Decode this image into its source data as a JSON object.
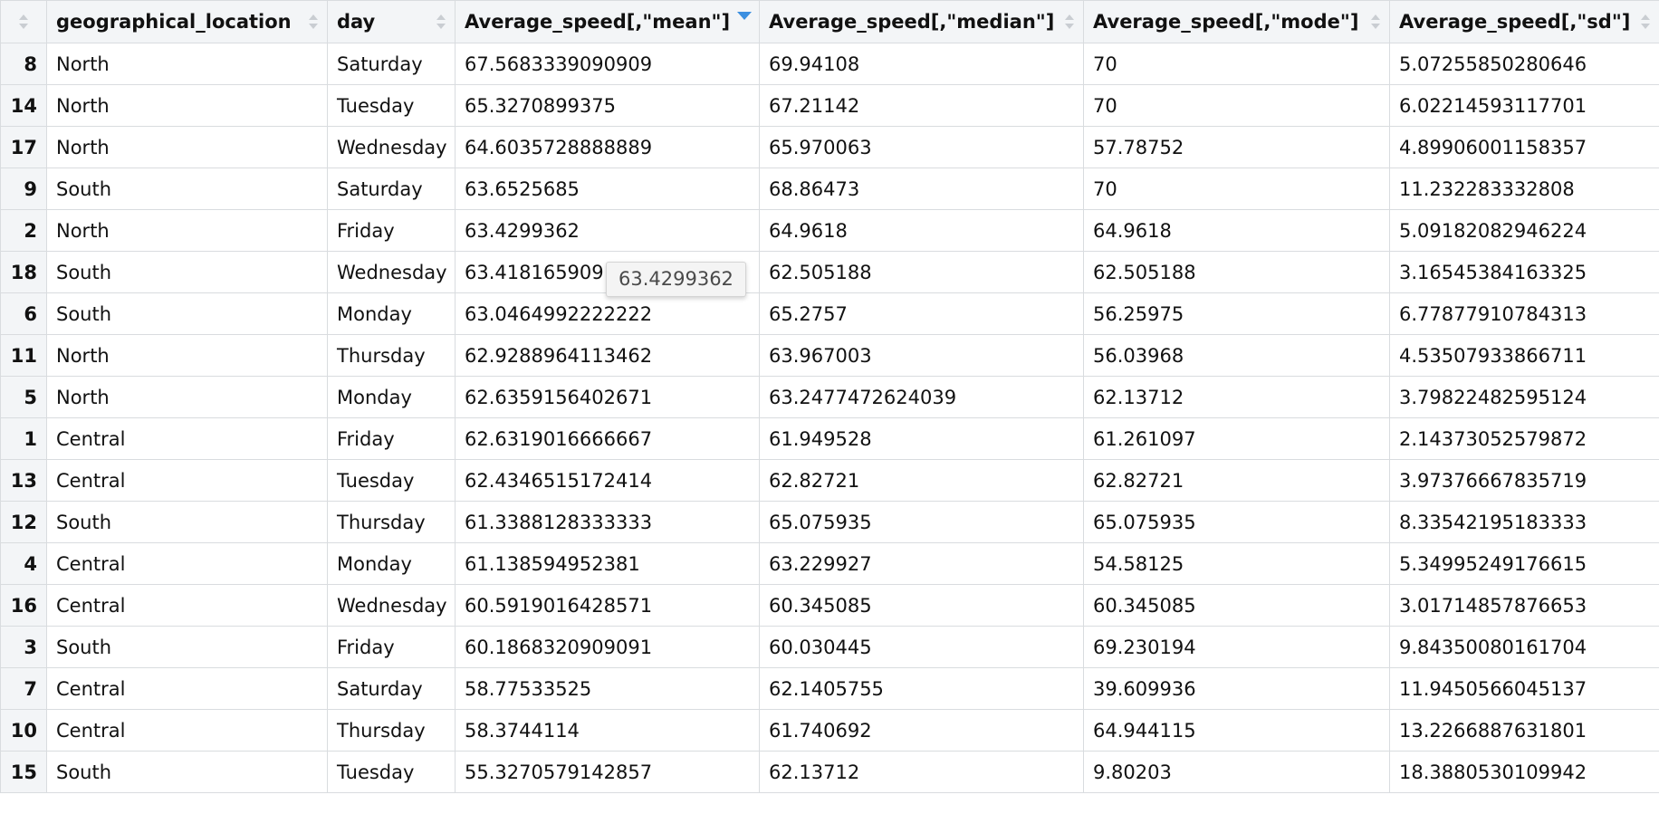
{
  "table": {
    "columns": [
      {
        "label": ""
      },
      {
        "label": "geographical_location"
      },
      {
        "label": "day"
      },
      {
        "label": "Average_speed[,\"mean\"]",
        "sorted": "descending"
      },
      {
        "label": "Average_speed[,\"median\"]"
      },
      {
        "label": "Average_speed[,\"mode\"]"
      },
      {
        "label": "Average_speed[,\"sd\"]"
      }
    ],
    "rows": [
      [
        "8",
        "North",
        "Saturday",
        "67.5683339090909",
        "69.94108",
        "70",
        "5.07255850280646"
      ],
      [
        "14",
        "North",
        "Tuesday",
        "65.3270899375",
        "67.21142",
        "70",
        "6.02214593117701"
      ],
      [
        "17",
        "North",
        "Wednesday",
        "64.6035728888889",
        "65.970063",
        "57.78752",
        "4.89906001158357"
      ],
      [
        "9",
        "South",
        "Saturday",
        "63.6525685",
        "68.86473",
        "70",
        "11.232283332808"
      ],
      [
        "2",
        "North",
        "Friday",
        "63.4299362",
        "64.9618",
        "64.9618",
        "5.09182082946224"
      ],
      [
        "18",
        "South",
        "Wednesday",
        "63.418165909",
        "62.505188",
        "62.505188",
        "3.16545384163325"
      ],
      [
        "6",
        "South",
        "Monday",
        "63.0464992222222",
        "65.2757",
        "56.25975",
        "6.77877910784313"
      ],
      [
        "11",
        "North",
        "Thursday",
        "62.9288964113462",
        "63.967003",
        "56.03968",
        "4.53507933866711"
      ],
      [
        "5",
        "North",
        "Monday",
        "62.6359156402671",
        "63.2477472624039",
        "62.13712",
        "3.79822482595124"
      ],
      [
        "1",
        "Central",
        "Friday",
        "62.6319016666667",
        "61.949528",
        "61.261097",
        "2.14373052579872"
      ],
      [
        "13",
        "Central",
        "Tuesday",
        "62.4346515172414",
        "62.82721",
        "62.82721",
        "3.97376667835719"
      ],
      [
        "12",
        "South",
        "Thursday",
        "61.3388128333333",
        "65.075935",
        "65.075935",
        "8.33542195183333"
      ],
      [
        "4",
        "Central",
        "Monday",
        "61.138594952381",
        "63.229927",
        "54.58125",
        "5.34995249176615"
      ],
      [
        "16",
        "Central",
        "Wednesday",
        "60.5919016428571",
        "60.345085",
        "60.345085",
        "3.01714857876653"
      ],
      [
        "3",
        "South",
        "Friday",
        "60.1868320909091",
        "60.030445",
        "69.230194",
        "9.84350080161704"
      ],
      [
        "7",
        "Central",
        "Saturday",
        "58.77533525",
        "62.1405755",
        "39.609936",
        "11.9450566045137"
      ],
      [
        "10",
        "Central",
        "Thursday",
        "58.3744114",
        "61.740692",
        "64.944115",
        "13.2266887631801"
      ],
      [
        "15",
        "South",
        "Tuesday",
        "55.3270579142857",
        "62.13712",
        "9.80203",
        "18.3880530109942"
      ]
    ]
  },
  "tooltip": {
    "text": "63.4299362"
  },
  "colors": {
    "header_bg": "#f3f5f7",
    "grid_line": "#d9dcdf",
    "sort_active": "#3b8fe0",
    "sort_inactive": "#c9cdd2"
  }
}
